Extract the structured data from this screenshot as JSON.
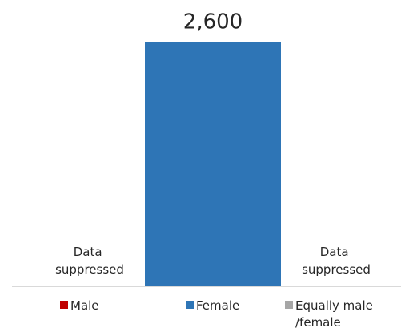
{
  "chart_data": {
    "type": "bar",
    "categories": [
      "Male",
      "Female",
      "Equally male /female"
    ],
    "values": [
      null,
      2600,
      null
    ],
    "value_labels": [
      "Data suppressed",
      "2,600",
      "Data suppressed"
    ],
    "colors": [
      "#c00000",
      "#2e75b6",
      "#a6a6a6"
    ],
    "ylim": [
      0,
      2600
    ],
    "legend": "bottom"
  }
}
